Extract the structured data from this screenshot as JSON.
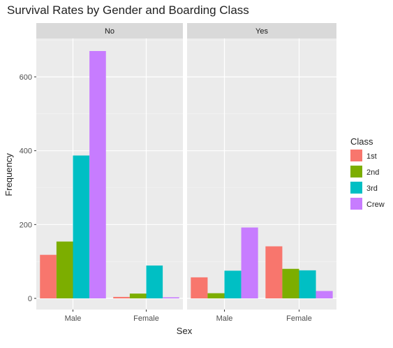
{
  "chart_data": {
    "type": "bar",
    "title": "Survival Rates by Gender and Boarding Class",
    "xlabel": "Sex",
    "ylabel": "Frequency",
    "ylim": [
      0,
      700
    ],
    "yticks": [
      0,
      200,
      400,
      600
    ],
    "categories": [
      "Male",
      "Female"
    ],
    "facets": [
      "No",
      "Yes"
    ],
    "legend": {
      "title": "Class",
      "placement": "right",
      "entries": [
        "1st",
        "2nd",
        "3rd",
        "Crew"
      ]
    },
    "colors": [
      "#F8766D",
      "#7CAE00",
      "#00BFC4",
      "#C77CFF"
    ],
    "panel_bg": "#EBEBEB",
    "strip_bg": "#D9D9D9",
    "grid": true,
    "series": [
      {
        "name": "1st",
        "values": {
          "No": [
            118,
            4
          ],
          "Yes": [
            57,
            141
          ]
        }
      },
      {
        "name": "2nd",
        "values": {
          "No": [
            154,
            13
          ],
          "Yes": [
            14,
            80
          ]
        }
      },
      {
        "name": "3rd",
        "values": {
          "No": [
            387,
            89
          ],
          "Yes": [
            75,
            76
          ]
        }
      },
      {
        "name": "Crew",
        "values": {
          "No": [
            670,
            3
          ],
          "Yes": [
            192,
            20
          ]
        }
      }
    ]
  }
}
